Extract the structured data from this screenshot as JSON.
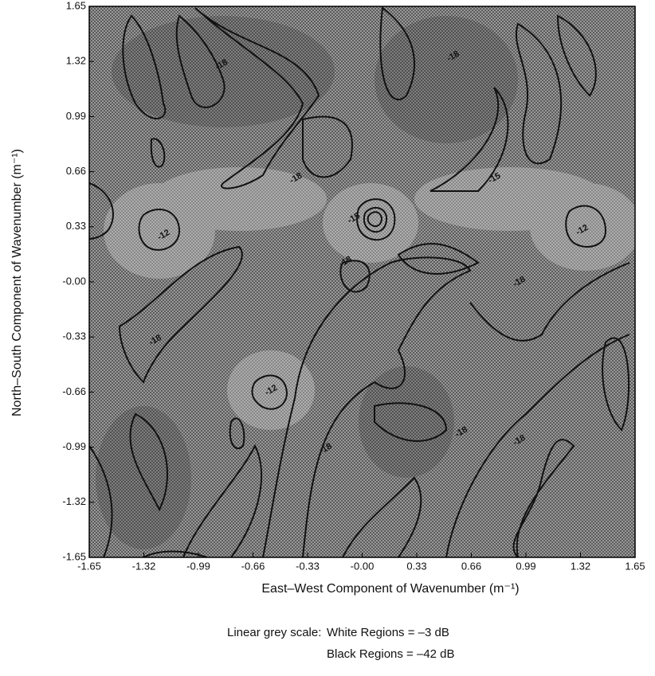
{
  "chart_data": {
    "type": "contour",
    "xlabel": "East–West Component of Wavenumber (m⁻¹)",
    "ylabel": "North–South Component of Wavenumber (m⁻¹)",
    "xlim": [
      -1.65,
      1.65
    ],
    "ylim": [
      -1.65,
      1.65
    ],
    "xticks": [
      -1.65,
      -1.32,
      -0.99,
      -0.66,
      -0.33,
      {
        "value": 0,
        "label": "-0.00"
      },
      0.33,
      0.66,
      0.99,
      1.32,
      1.65
    ],
    "yticks": [
      -1.65,
      -1.32,
      -0.99,
      -0.66,
      -0.33,
      {
        "value": 0,
        "label": "-0.00"
      },
      0.33,
      0.66,
      0.99,
      1.32,
      1.65
    ],
    "contour_labels": [
      {
        "x": -1.2,
        "y": 0.28,
        "level": -12
      },
      {
        "x": 1.33,
        "y": 0.31,
        "level": -12
      },
      {
        "x": -0.55,
        "y": -0.65,
        "level": -12
      },
      {
        "x": -0.05,
        "y": 0.38,
        "level": -15
      },
      {
        "x": -0.85,
        "y": 1.3,
        "level": -18
      },
      {
        "x": 0.55,
        "y": 1.35,
        "level": -18
      },
      {
        "x": -0.4,
        "y": 0.62,
        "level": -18
      },
      {
        "x": 0.8,
        "y": 0.62,
        "level": -15
      },
      {
        "x": -1.25,
        "y": -0.35,
        "level": -18
      },
      {
        "x": -0.1,
        "y": 0.12,
        "level": -18
      },
      {
        "x": 0.95,
        "y": 0.0,
        "level": -18
      },
      {
        "x": 0.6,
        "y": -0.9,
        "level": -18
      },
      {
        "x": -0.22,
        "y": -1.0,
        "level": -18
      },
      {
        "x": 0.95,
        "y": -0.95,
        "level": -18
      }
    ],
    "notes": [
      "Linear grey scale:",
      "White Regions = –3 dB",
      "Black Regions =  –42 dB"
    ]
  }
}
